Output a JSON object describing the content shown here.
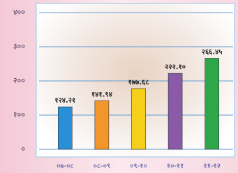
{
  "chart_data": {
    "type": "bar",
    "categories": [
      "०७-०८",
      "०८-०९",
      "०९-१०",
      "१०-११",
      "११-१२"
    ],
    "values": [
      124.21,
      141.94,
      177.68,
      222.1,
      266.45
    ],
    "value_labels": [
      "१२४.२१",
      "१४१.९४",
      "१७७.६८",
      "२२२.१०",
      "२६६.४५"
    ],
    "colors": [
      "#2b8fd8",
      "#f0962a",
      "#f5cf1a",
      "#8a5aa8",
      "#2ea64a"
    ],
    "ylim": [
      0,
      400
    ],
    "yticks": [
      {
        "value": 0,
        "label": "०"
      },
      {
        "value": 100,
        "label": "१००"
      },
      {
        "value": 200,
        "label": "२००"
      },
      {
        "value": 300,
        "label": "३००"
      },
      {
        "value": 400,
        "label": "४००"
      }
    ],
    "grid": true
  }
}
